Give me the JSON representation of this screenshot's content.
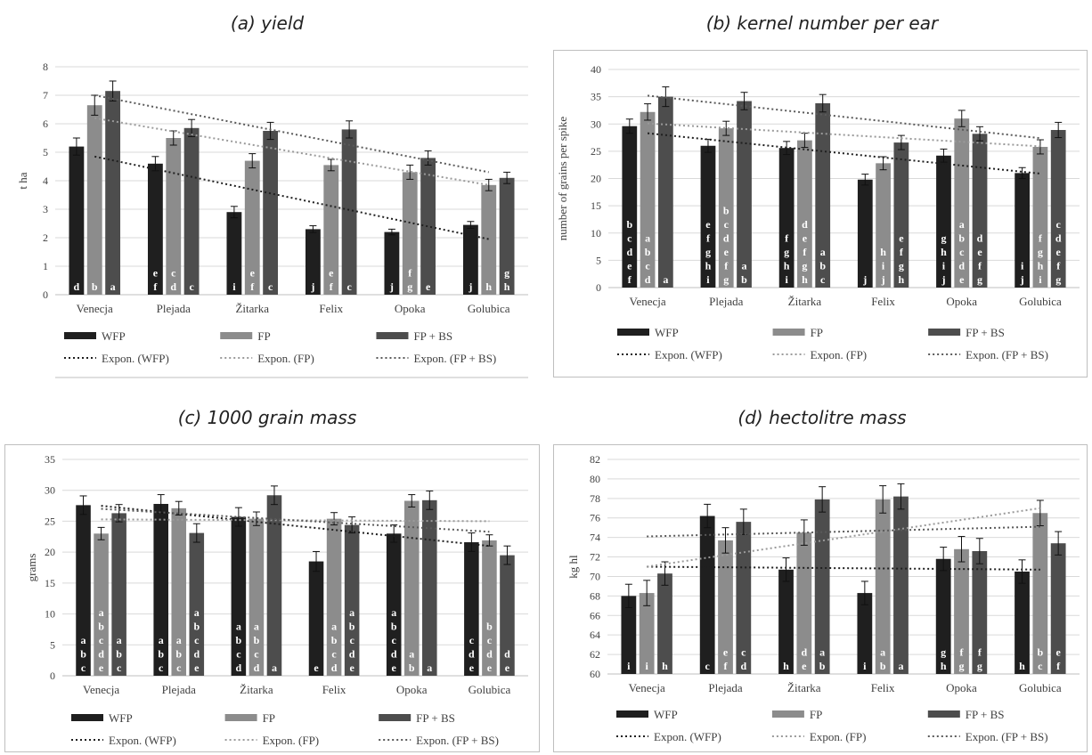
{
  "chart_data": [
    {
      "type": "bar",
      "title": "(a) yield",
      "ylabel": "t ha",
      "ylim": [
        0,
        8
      ],
      "ystep": 1,
      "categories": [
        "Venecja",
        "Plejada",
        "Žitarka",
        "Felix",
        "Opoka",
        "Golubica"
      ],
      "series": [
        {
          "name": "WFP",
          "color": "#1f1f1f",
          "values": [
            5.2,
            4.6,
            2.9,
            2.3,
            2.2,
            2.45
          ],
          "errors": [
            0.3,
            0.25,
            0.2,
            0.12,
            0.1,
            0.12
          ],
          "letters": [
            [
              "d"
            ],
            [
              "e",
              "f"
            ],
            [
              "i"
            ],
            [
              "j"
            ],
            [
              "j"
            ],
            [
              "j"
            ]
          ]
        },
        {
          "name": "FP",
          "color": "#8c8c8c",
          "values": [
            6.65,
            5.5,
            4.7,
            4.55,
            4.3,
            3.85
          ],
          "errors": [
            0.35,
            0.25,
            0.25,
            0.2,
            0.25,
            0.2
          ],
          "letters": [
            [
              "b"
            ],
            [
              "c",
              "d"
            ],
            [
              "e",
              "f"
            ],
            [
              "e",
              "f"
            ],
            [
              "f",
              "g"
            ],
            [
              "h"
            ]
          ]
        },
        {
          "name": "FP + BS",
          "color": "#4d4d4d",
          "values": [
            7.15,
            5.85,
            5.75,
            5.8,
            4.8,
            4.1
          ],
          "errors": [
            0.35,
            0.3,
            0.3,
            0.3,
            0.25,
            0.2
          ],
          "letters": [
            [
              "a"
            ],
            [
              "c"
            ],
            [
              "c"
            ],
            [
              "c"
            ],
            [
              "e"
            ],
            [
              "g",
              "h"
            ]
          ]
        }
      ],
      "trendlines": [
        {
          "name": "Expon. (WFP)",
          "color": "#1f1f1f",
          "from": 4.85,
          "to": 1.95
        },
        {
          "name": "Expon. (FP)",
          "color": "#9a9a9a",
          "from": 6.2,
          "to": 3.85
        },
        {
          "name": "Expon. (FP + BS)",
          "color": "#5a5a5a",
          "from": 7.0,
          "to": 4.3
        }
      ],
      "grid": true,
      "legend": "bottom"
    },
    {
      "type": "bar",
      "title": "(b) kernel number per ear",
      "ylabel": "number of grains per spike",
      "ylim": [
        0,
        40
      ],
      "ystep": 5,
      "categories": [
        "Venecja",
        "Plejada",
        "Žitarka",
        "Felix",
        "Opoka",
        "Golubica"
      ],
      "series": [
        {
          "name": "WFP",
          "color": "#1f1f1f",
          "values": [
            29.6,
            26.0,
            25.6,
            19.8,
            24.2,
            21.0
          ],
          "errors": [
            1.3,
            1.2,
            1.2,
            1.0,
            1.2,
            1.0
          ],
          "letters": [
            [
              "b",
              "c",
              "d",
              "e",
              "f"
            ],
            [
              "e",
              "f",
              "g",
              "h",
              "i"
            ],
            [
              "f",
              "g",
              "h",
              "i"
            ],
            [
              "j"
            ],
            [
              "g",
              "h",
              "i",
              "j"
            ],
            [
              "i",
              "j"
            ]
          ]
        },
        {
          "name": "FP",
          "color": "#8c8c8c",
          "values": [
            32.2,
            29.2,
            27.0,
            22.8,
            31.0,
            25.8
          ],
          "errors": [
            1.5,
            1.3,
            1.3,
            1.2,
            1.5,
            1.3
          ],
          "letters": [
            [
              "a",
              "b",
              "c",
              "d"
            ],
            [
              "b",
              "c",
              "d",
              "e",
              "f",
              "g"
            ],
            [
              "d",
              "e",
              "f",
              "g",
              "h"
            ],
            [
              "h",
              "i",
              "j"
            ],
            [
              "a",
              "b",
              "c",
              "d",
              "e"
            ],
            [
              "f",
              "g",
              "h",
              "i"
            ]
          ]
        },
        {
          "name": "FP + BS",
          "color": "#4d4d4d",
          "values": [
            35.0,
            34.2,
            33.8,
            26.6,
            28.2,
            28.9
          ],
          "errors": [
            1.8,
            1.6,
            1.6,
            1.3,
            1.3,
            1.4
          ],
          "letters": [
            [
              "a"
            ],
            [
              "a",
              "b"
            ],
            [
              "a",
              "b",
              "c"
            ],
            [
              "e",
              "f",
              "g",
              "h"
            ],
            [
              "d",
              "e",
              "f",
              "g"
            ],
            [
              "c",
              "d",
              "e",
              "f",
              "g"
            ]
          ]
        }
      ],
      "trendlines": [
        {
          "name": "Expon. (WFP)",
          "color": "#1f1f1f",
          "from": 28.3,
          "to": 20.9
        },
        {
          "name": "Expon. (FP)",
          "color": "#9a9a9a",
          "from": 30.1,
          "to": 25.9
        },
        {
          "name": "Expon. (FP + BS)",
          "color": "#5a5a5a",
          "from": 35.2,
          "to": 27.4
        }
      ],
      "grid": true,
      "legend": "bottom"
    },
    {
      "type": "bar",
      "title": "(c) 1000 grain mass",
      "ylabel": "grams",
      "ylim": [
        0,
        35
      ],
      "ystep": 5,
      "categories": [
        "Venecja",
        "Plejada",
        "Žitarka",
        "Felix",
        "Opoka",
        "Golubica"
      ],
      "series": [
        {
          "name": "WFP",
          "color": "#1f1f1f",
          "values": [
            27.6,
            27.8,
            25.7,
            18.5,
            23.0,
            21.6
          ],
          "errors": [
            1.5,
            1.5,
            1.5,
            1.6,
            1.4,
            1.5
          ],
          "letters": [
            [
              "a",
              "b",
              "c"
            ],
            [
              "a",
              "b",
              "c"
            ],
            [
              "a",
              "b",
              "c",
              "d"
            ],
            [
              "e"
            ],
            [
              "a",
              "b",
              "c",
              "d",
              "e"
            ],
            [
              "c",
              "d",
              "e"
            ]
          ]
        },
        {
          "name": "FP",
          "color": "#8c8c8c",
          "values": [
            23.0,
            27.1,
            25.4,
            25.4,
            28.3,
            21.9
          ],
          "errors": [
            1.0,
            1.1,
            1.1,
            1.0,
            1.0,
            0.9
          ],
          "letters": [
            [
              "a",
              "b",
              "c",
              "d",
              "e"
            ],
            [
              "a",
              "b",
              "c"
            ],
            [
              "a",
              "b",
              "c",
              "d"
            ],
            [
              "a",
              "b",
              "c",
              "d"
            ],
            [
              "a",
              "b"
            ],
            [
              "b",
              "c",
              "d",
              "e"
            ]
          ]
        },
        {
          "name": "FP + BS",
          "color": "#4d4d4d",
          "values": [
            26.3,
            23.1,
            29.2,
            24.4,
            28.4,
            19.5
          ],
          "errors": [
            1.4,
            1.5,
            1.5,
            1.3,
            1.5,
            1.5
          ],
          "letters": [
            [
              "a",
              "b",
              "c"
            ],
            [
              "a",
              "b",
              "c",
              "d",
              "e"
            ],
            [
              "a"
            ],
            [
              "a",
              "b",
              "c",
              "d",
              "e"
            ],
            [
              "a"
            ],
            [
              "d",
              "e"
            ]
          ]
        }
      ],
      "trendlines": [
        {
          "name": "Expon. (WFP)",
          "color": "#1f1f1f",
          "from": 27.5,
          "to": 21.0
        },
        {
          "name": "Expon. (FP)",
          "color": "#9a9a9a",
          "from": 25.3,
          "to": 25.0
        },
        {
          "name": "Expon. (FP + BS)",
          "color": "#5a5a5a",
          "from": 27.0,
          "to": 23.3
        }
      ],
      "grid": true,
      "legend": "bottom"
    },
    {
      "type": "bar",
      "title": "(d) hectolitre mass",
      "ylabel": "kg hl",
      "ylim": [
        60,
        82
      ],
      "ystep": 2,
      "categories": [
        "Venecja",
        "Plejada",
        "Žitarka",
        "Felix",
        "Opoka",
        "Golubica"
      ],
      "series": [
        {
          "name": "WFP",
          "color": "#1f1f1f",
          "values": [
            68.0,
            76.2,
            70.7,
            68.3,
            71.8,
            70.5
          ],
          "errors": [
            1.2,
            1.2,
            1.2,
            1.2,
            1.2,
            1.2
          ],
          "letters": [
            [
              "i"
            ],
            [
              "c"
            ],
            [
              "h"
            ],
            [
              "i"
            ],
            [
              "g",
              "h"
            ],
            [
              "h"
            ]
          ]
        },
        {
          "name": "FP",
          "color": "#8c8c8c",
          "values": [
            68.3,
            73.7,
            74.5,
            77.9,
            72.8,
            76.5
          ],
          "errors": [
            1.3,
            1.3,
            1.3,
            1.4,
            1.3,
            1.3
          ],
          "letters": [
            [
              "i"
            ],
            [
              "e",
              "f"
            ],
            [
              "d",
              "e"
            ],
            [
              "a",
              "b"
            ],
            [
              "f",
              "g"
            ],
            [
              "b",
              "c"
            ]
          ]
        },
        {
          "name": "FP + BS",
          "color": "#4d4d4d",
          "values": [
            70.3,
            75.6,
            77.9,
            78.2,
            72.6,
            73.4
          ],
          "errors": [
            1.2,
            1.3,
            1.3,
            1.3,
            1.3,
            1.2
          ],
          "letters": [
            [
              "h"
            ],
            [
              "c",
              "d"
            ],
            [
              "a",
              "b"
            ],
            [
              "a"
            ],
            [
              "f",
              "g"
            ],
            [
              "e",
              "f"
            ]
          ]
        }
      ],
      "trendlines": [
        {
          "name": "Expon. (WFP)",
          "color": "#1f1f1f",
          "from": 71.0,
          "to": 70.7
        },
        {
          "name": "Expon. (FP)",
          "color": "#9a9a9a",
          "from": 71.0,
          "to": 77.0
        },
        {
          "name": "Expon. (FP + BS)",
          "color": "#5a5a5a",
          "from": 74.1,
          "to": 75.1
        }
      ],
      "grid": true,
      "legend": "bottom"
    }
  ]
}
